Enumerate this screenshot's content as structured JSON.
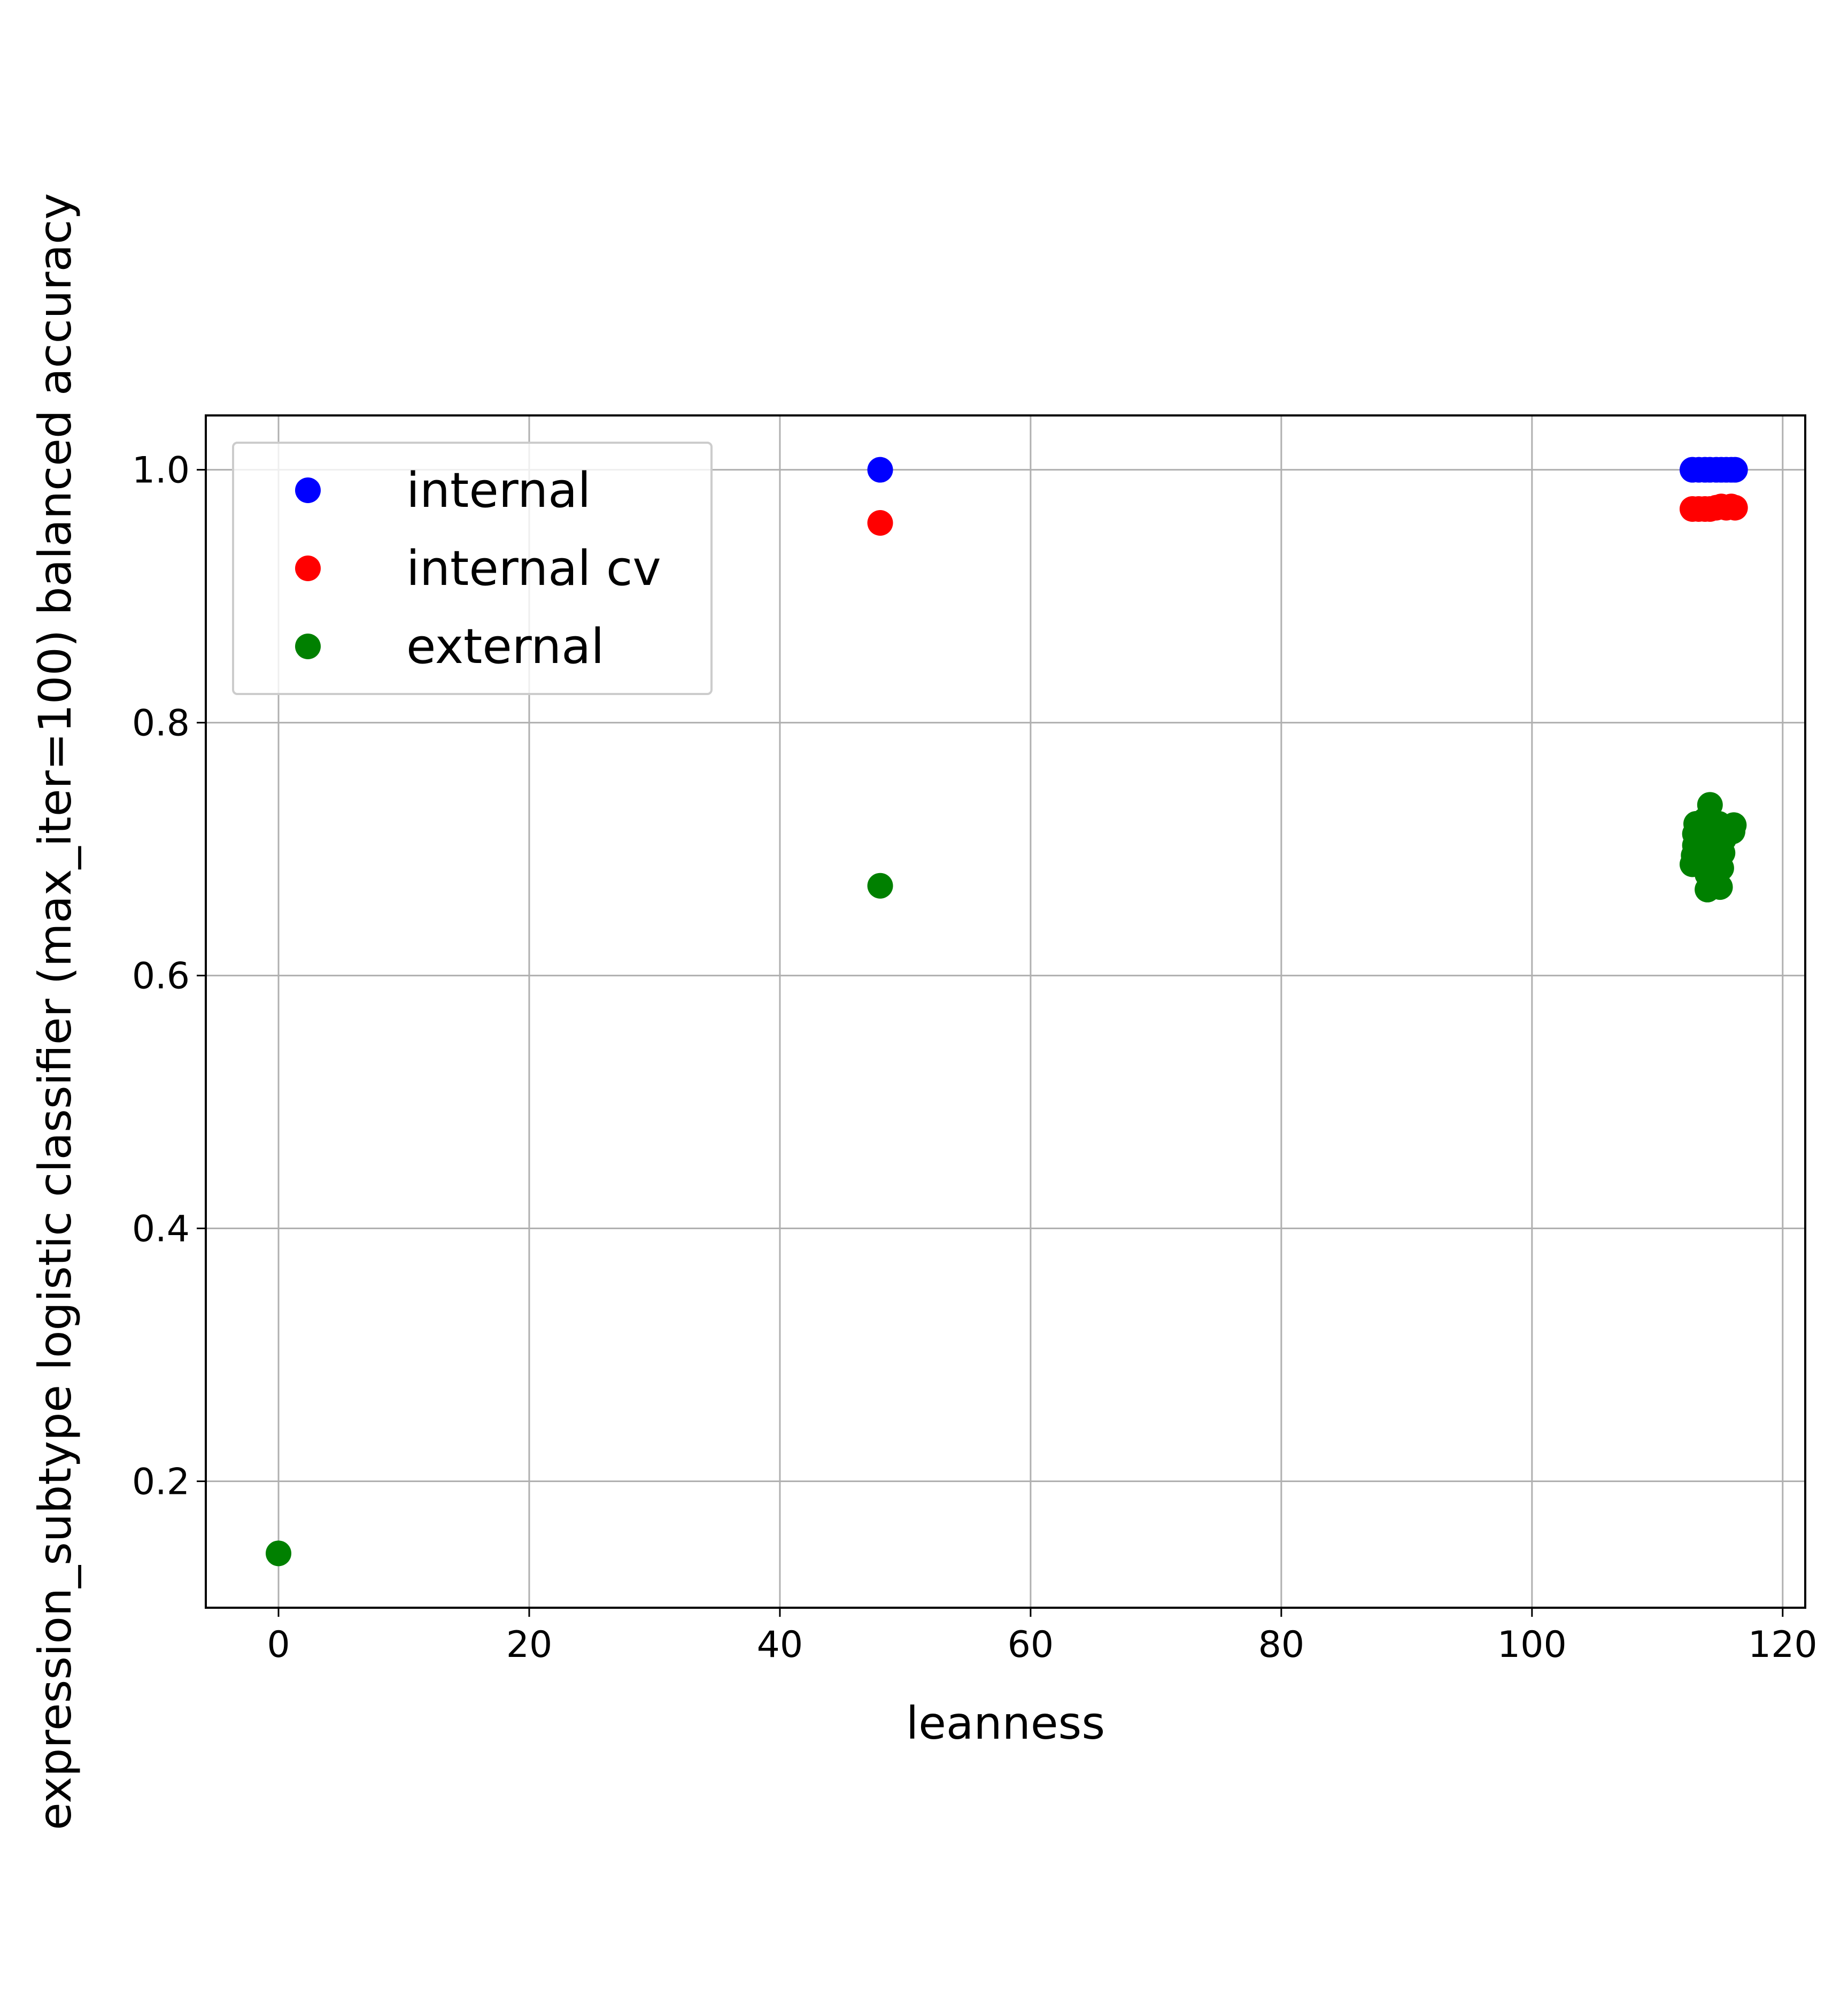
{
  "chart_data": {
    "type": "scatter",
    "xlabel": "leanness",
    "ylabel": "expression_subtype logistic classifier (max_iter=100) balanced accuracy",
    "xlim": [
      -5.8,
      121.8
    ],
    "ylim": [
      0.1,
      1.043
    ],
    "x_ticks": [
      0,
      20,
      40,
      60,
      80,
      100,
      120
    ],
    "y_ticks": [
      0.2,
      0.4,
      0.6,
      0.8,
      1.0
    ],
    "x_tick_labels": [
      "0",
      "20",
      "40",
      "60",
      "80",
      "100",
      "120"
    ],
    "y_tick_labels": [
      "0.2",
      "0.4",
      "0.6",
      "0.8",
      "1.0"
    ],
    "grid": true,
    "legend_position": "upper-left",
    "series": [
      {
        "name": "internal",
        "color": "#0000ff",
        "points": [
          [
            48,
            1.0
          ],
          [
            112.8,
            1.0
          ],
          [
            113.3,
            1.0
          ],
          [
            113.8,
            1.0
          ],
          [
            114.2,
            1.0
          ],
          [
            114.7,
            1.0
          ],
          [
            115.1,
            1.0
          ],
          [
            115.5,
            1.0
          ],
          [
            115.9,
            1.0
          ],
          [
            116.2,
            1.0
          ]
        ]
      },
      {
        "name": "internal cv",
        "color": "#ff0000",
        "points": [
          [
            48,
            0.958
          ],
          [
            112.8,
            0.969
          ],
          [
            113.3,
            0.969
          ],
          [
            113.8,
            0.969
          ],
          [
            114.2,
            0.969
          ],
          [
            114.7,
            0.97
          ],
          [
            115.1,
            0.971
          ],
          [
            115.5,
            0.97
          ],
          [
            115.9,
            0.971
          ],
          [
            116.2,
            0.97
          ]
        ]
      },
      {
        "name": "external",
        "color": "#008000",
        "points": [
          [
            0,
            0.143
          ],
          [
            48,
            0.671
          ],
          [
            112.8,
            0.688
          ],
          [
            112.9,
            0.695
          ],
          [
            113.0,
            0.703
          ],
          [
            113.0,
            0.712
          ],
          [
            113.1,
            0.72
          ],
          [
            113.5,
            0.693
          ],
          [
            113.6,
            0.705
          ],
          [
            113.7,
            0.715
          ],
          [
            113.8,
            0.723
          ],
          [
            114.0,
            0.668
          ],
          [
            114.0,
            0.68
          ],
          [
            114.1,
            0.692
          ],
          [
            114.1,
            0.7
          ],
          [
            114.2,
            0.712
          ],
          [
            114.2,
            0.735
          ],
          [
            114.6,
            0.69
          ],
          [
            114.7,
            0.702
          ],
          [
            114.8,
            0.713
          ],
          [
            114.9,
            0.72
          ],
          [
            115.0,
            0.67
          ],
          [
            115.1,
            0.685
          ],
          [
            115.2,
            0.697
          ],
          [
            115.3,
            0.708
          ],
          [
            115.4,
            0.717
          ],
          [
            116.0,
            0.714
          ],
          [
            116.1,
            0.719
          ]
        ]
      }
    ]
  }
}
